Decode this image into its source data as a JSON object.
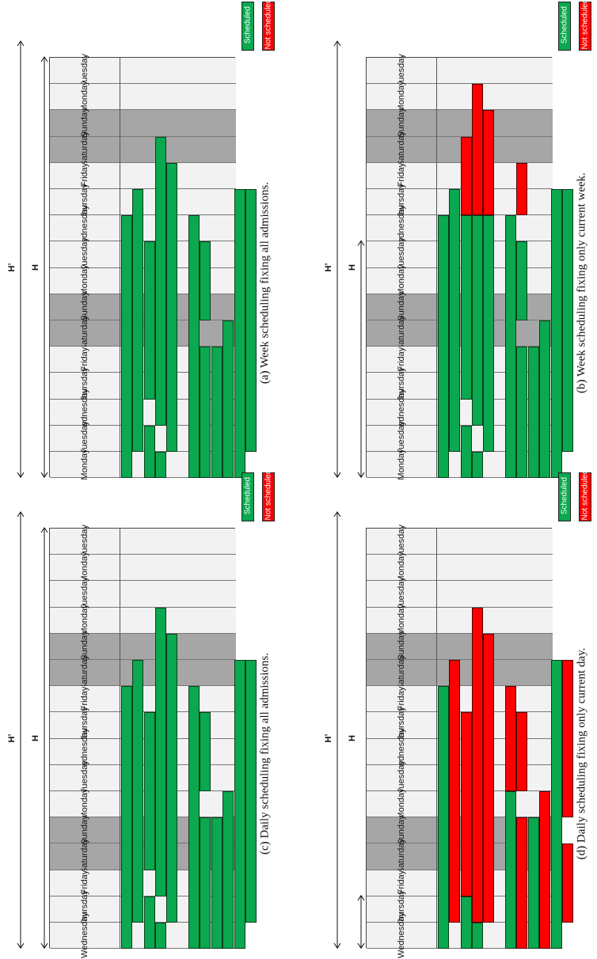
{
  "days": [
    "Monday",
    "Tuesday",
    "Wednesday",
    "Thursday",
    "Friday",
    "Saturday",
    "Sunday",
    "Monday",
    "Tuesday",
    "Wednesday",
    "Thursday",
    "Friday",
    "Saturday",
    "Sunday",
    "Monday",
    "Tuesday"
  ],
  "days_wed": [
    "Wednesday",
    "Thursday",
    "Friday",
    "Saturday",
    "Sunday",
    "Monday",
    "Tuesday",
    "Wednesday",
    "Thursday",
    "Friday",
    "Saturday",
    "Sunday",
    "Monday",
    "Tuesday",
    "Monday",
    "Tuesday"
  ],
  "legend": {
    "scheduled": "Scheduled",
    "not_scheduled": "Not scheduled"
  },
  "labels": {
    "h": "H",
    "h_prime": "H’"
  },
  "colors": {
    "scheduled": "#0aa84f",
    "not_scheduled": "#ff0000",
    "weekend": "#a6a6a6",
    "weekday": "#f2f2f2"
  },
  "panels": [
    {
      "id": "a",
      "caption": "(a) Week scheduling fixing all admissions.",
      "start_day": "Monday"
    },
    {
      "id": "b",
      "caption": "(b) Week scheduling fixing only current week.",
      "start_day": "Monday"
    },
    {
      "id": "c",
      "caption": "(c) Daily scheduling fixing all admissions.",
      "start_day": "Wednesday"
    },
    {
      "id": "d",
      "caption": "(d) Daily scheduling fixing only current day.",
      "start_day": "Wednesday"
    }
  ],
  "weekend_days": [
    "Saturday",
    "Sunday"
  ]
}
